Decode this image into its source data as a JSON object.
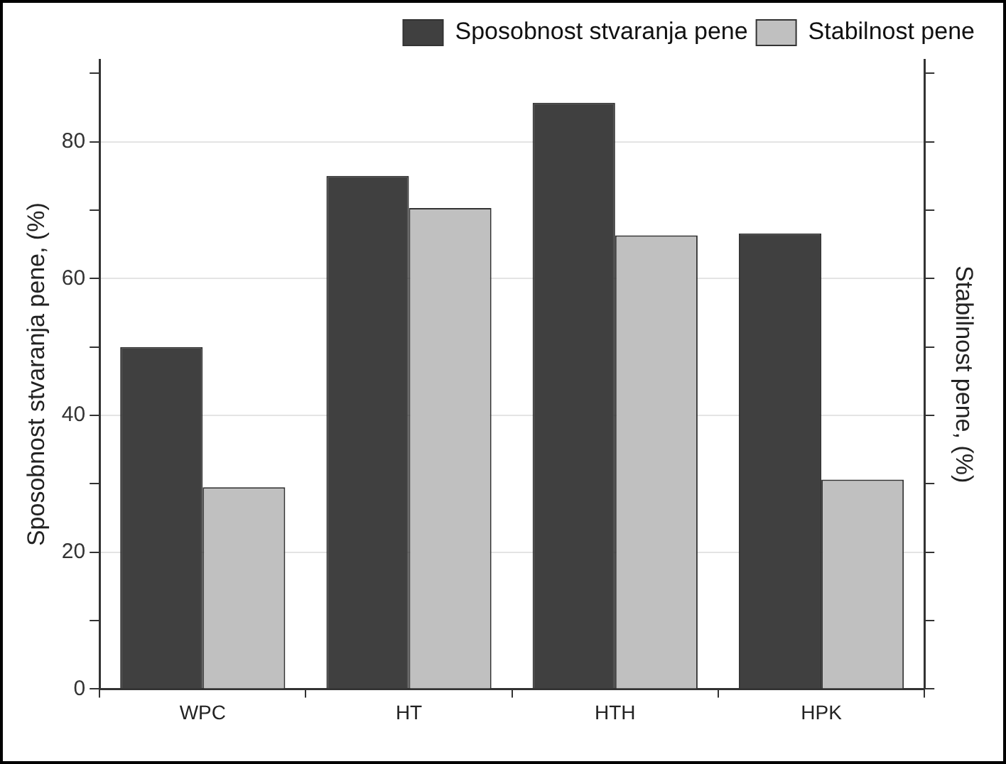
{
  "chart_data": {
    "type": "bar",
    "categories": [
      "WPC",
      "HT",
      "HTH",
      "HPK"
    ],
    "series": [
      {
        "name": "Sposobnost stvaranja pene",
        "color": "#404040",
        "values": [
          50,
          75,
          85.7,
          66.6
        ]
      },
      {
        "name": "Stabilnost pene",
        "color": "#c0c0c0",
        "values": [
          29.5,
          70.3,
          66.3,
          30.6
        ]
      }
    ],
    "ylabel": "Sposobnost stvaranja pene, (%)",
    "y2label": "Stabilnost pene, (%)",
    "ylim": [
      0,
      92
    ],
    "yticks": [
      0,
      {
        "value": 10,
        "label": null
      },
      20,
      {
        "value": 30,
        "label": null
      },
      40,
      {
        "value": 50,
        "label": null
      },
      60,
      {
        "value": 70,
        "label": null
      },
      80,
      {
        "value": 90,
        "label": null
      }
    ],
    "grid": "y",
    "legend": "top right"
  }
}
